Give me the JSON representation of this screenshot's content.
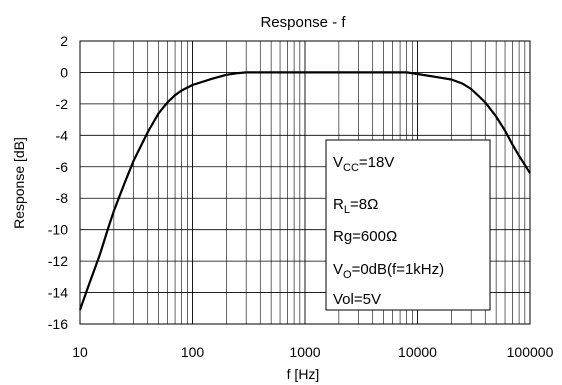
{
  "chart_data": {
    "type": "line",
    "title": "Response - f",
    "xlabel": "f [Hz]",
    "ylabel": "Response [dB]",
    "x_scale": "log",
    "xlim": [
      10,
      100000
    ],
    "ylim": [
      -16,
      2
    ],
    "grid": true,
    "xticks": [
      10,
      100,
      1000,
      10000,
      100000
    ],
    "xtick_labels": [
      "10",
      "100",
      "1000",
      "10000",
      "100000"
    ],
    "yticks": [
      2,
      0,
      -2,
      -4,
      -6,
      -8,
      -10,
      -12,
      -14,
      -16
    ],
    "ytick_labels": [
      "2",
      "0",
      "-2",
      "-4",
      "-6",
      "-8",
      "-10",
      "-12",
      "-14",
      "-16"
    ],
    "series": [
      {
        "color": "#000000",
        "x": [
          10,
          12,
          15,
          18,
          20,
          25,
          30,
          40,
          50,
          60,
          70,
          80,
          100,
          150,
          200,
          250,
          300,
          400,
          500,
          1000,
          2000,
          5000,
          8000,
          10000,
          15000,
          20000,
          25000,
          30000,
          40000,
          50000,
          60000,
          70000,
          80000,
          100000
        ],
        "y": [
          -15.1,
          -13.5,
          -11.6,
          -9.8,
          -8.8,
          -7.0,
          -5.6,
          -3.8,
          -2.6,
          -1.9,
          -1.45,
          -1.15,
          -0.8,
          -0.4,
          -0.15,
          -0.05,
          0,
          0,
          0,
          0,
          0,
          0,
          0,
          -0.1,
          -0.3,
          -0.45,
          -0.7,
          -1.05,
          -1.9,
          -2.8,
          -3.7,
          -4.6,
          -5.3,
          -6.4
        ]
      }
    ],
    "legend": {
      "placement": "lower-right",
      "lines": [
        {
          "main": "V",
          "sub": "CC",
          "rest": "=18V"
        },
        {
          "main": "R",
          "sub": "L",
          "rest": "=8Ω"
        },
        {
          "main": "Rg=600Ω",
          "sub": "",
          "rest": ""
        },
        {
          "main": "V",
          "sub": "O",
          "rest": "=0dB(f=1kHz)"
        },
        {
          "main": "Vol=5V",
          "sub": "",
          "rest": ""
        }
      ]
    }
  }
}
